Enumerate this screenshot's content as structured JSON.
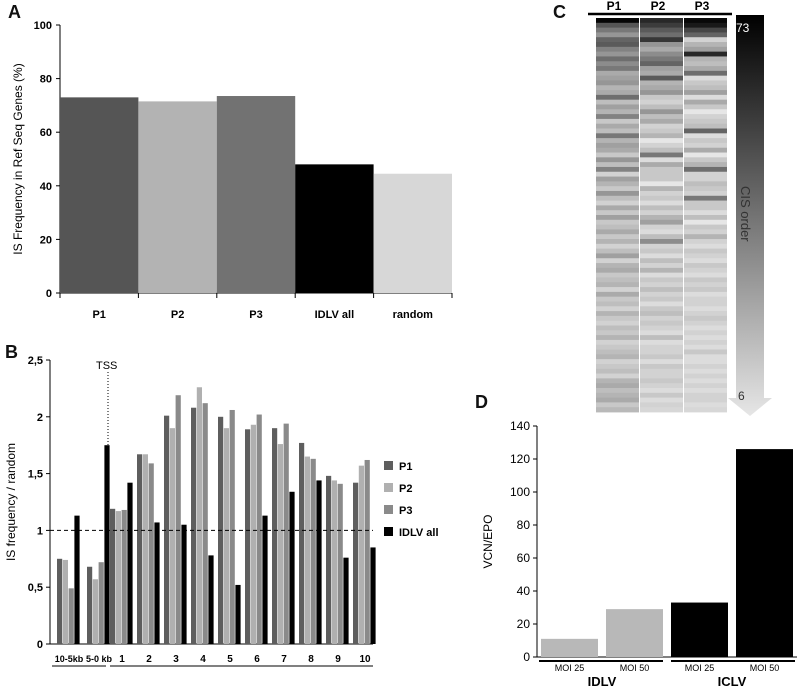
{
  "panels": {
    "A": "A",
    "B": "B",
    "C": "C",
    "D": "D"
  },
  "chart_data": [
    {
      "panel": "A",
      "type": "bar",
      "ylabel": "IS Frequency in Ref Seq Genes (%)",
      "xlabel": "",
      "ylim": [
        0,
        100
      ],
      "yticks": [
        0,
        20,
        40,
        60,
        80,
        100
      ],
      "categories": [
        "P1",
        "P2",
        "P3",
        "IDLV all",
        "random"
      ],
      "values": [
        73,
        71.5,
        73.5,
        48,
        44.5
      ],
      "colors": [
        "#555555",
        "#b3b3b3",
        "#727272",
        "#000000",
        "#d7d7d7"
      ],
      "grid": false
    },
    {
      "panel": "B",
      "type": "bar",
      "ylabel": "IS frequency / random",
      "ylim": [
        0,
        2.5
      ],
      "yticks": [
        "0",
        "0,5",
        "1",
        "1,5",
        "2",
        "2,5"
      ],
      "categories": [
        "10-5kb",
        "5-0 kb",
        "1",
        "2",
        "3",
        "4",
        "5",
        "6",
        "7",
        "8",
        "9",
        "10"
      ],
      "annotation": "TSS",
      "reference_line": 1,
      "series": [
        {
          "name": "P1",
          "color": "#5e5e5e",
          "values": [
            0.75,
            0.68,
            1.19,
            1.67,
            2.01,
            2.08,
            2.0,
            1.89,
            1.9,
            1.77,
            1.48,
            1.42
          ]
        },
        {
          "name": "P2",
          "color": "#b0b0b0",
          "values": [
            0.74,
            0.57,
            1.17,
            1.67,
            1.9,
            2.26,
            1.9,
            1.93,
            1.76,
            1.65,
            1.44,
            1.57
          ]
        },
        {
          "name": "P3",
          "color": "#8a8a8a",
          "values": [
            0.49,
            0.72,
            1.18,
            1.59,
            2.19,
            2.12,
            2.06,
            2.02,
            1.94,
            1.63,
            1.41,
            1.62
          ]
        },
        {
          "name": "IDLV all",
          "color": "#000000",
          "values": [
            1.13,
            1.75,
            1.42,
            1.07,
            1.05,
            0.78,
            0.52,
            1.13,
            1.34,
            1.44,
            0.76,
            0.85
          ]
        }
      ],
      "legend": "right",
      "grid": false
    },
    {
      "panel": "C",
      "type": "heatmap",
      "columns": [
        "P1",
        "P2",
        "P3"
      ],
      "colorbar_top": "73",
      "colorbar_bottom": "6",
      "colorbar_label": "CIS order",
      "rows_gray": [
        [
          5,
          40,
          8
        ],
        [
          85,
          60,
          25
        ],
        [
          120,
          90,
          70
        ],
        [
          150,
          110,
          100
        ],
        [
          100,
          55,
          210
        ],
        [
          90,
          150,
          180
        ],
        [
          130,
          170,
          160
        ],
        [
          150,
          140,
          40
        ],
        [
          110,
          120,
          180
        ],
        [
          140,
          100,
          190
        ],
        [
          120,
          160,
          170
        ],
        [
          170,
          170,
          110
        ],
        [
          160,
          90,
          220
        ],
        [
          150,
          180,
          200
        ],
        [
          180,
          170,
          190
        ],
        [
          170,
          150,
          160
        ],
        [
          110,
          200,
          220
        ],
        [
          190,
          210,
          170
        ],
        [
          160,
          190,
          200
        ],
        [
          180,
          150,
          230
        ],
        [
          130,
          190,
          210
        ],
        [
          200,
          170,
          200
        ],
        [
          170,
          210,
          190
        ],
        [
          190,
          200,
          100
        ],
        [
          120,
          180,
          220
        ],
        [
          180,
          230,
          200
        ],
        [
          160,
          210,
          210
        ],
        [
          170,
          190,
          170
        ],
        [
          200,
          120,
          230
        ],
        [
          150,
          220,
          200
        ],
        [
          190,
          170,
          180
        ],
        [
          130,
          200,
          110
        ],
        [
          210,
          200,
          210
        ],
        [
          160,
          200,
          210
        ],
        [
          180,
          230,
          190
        ],
        [
          200,
          180,
          200
        ],
        [
          150,
          210,
          210
        ],
        [
          190,
          200,
          120
        ],
        [
          210,
          220,
          200
        ],
        [
          170,
          190,
          200
        ],
        [
          200,
          210,
          220
        ],
        [
          160,
          180,
          190
        ],
        [
          200,
          160,
          230
        ],
        [
          190,
          210,
          200
        ],
        [
          170,
          220,
          210
        ],
        [
          200,
          190,
          180
        ],
        [
          180,
          140,
          210
        ],
        [
          210,
          210,
          220
        ],
        [
          190,
          200,
          200
        ],
        [
          160,
          220,
          210
        ],
        [
          210,
          190,
          220
        ],
        [
          180,
          210,
          200
        ],
        [
          170,
          180,
          210
        ],
        [
          200,
          220,
          220
        ],
        [
          190,
          200,
          200
        ],
        [
          180,
          210,
          210
        ],
        [
          210,
          190,
          200
        ],
        [
          170,
          210,
          220
        ],
        [
          200,
          200,
          210
        ],
        [
          190,
          220,
          210
        ],
        [
          210,
          200,
          220
        ],
        [
          180,
          190,
          210
        ],
        [
          200,
          210,
          200
        ],
        [
          210,
          200,
          210
        ],
        [
          190,
          210,
          220
        ],
        [
          200,
          220,
          210
        ],
        [
          180,
          190,
          220
        ],
        [
          210,
          220,
          210
        ],
        [
          200,
          210,
          220
        ],
        [
          190,
          210,
          200
        ],
        [
          180,
          200,
          220
        ],
        [
          210,
          220,
          220
        ],
        [
          200,
          200,
          210
        ],
        [
          190,
          210,
          220
        ],
        [
          210,
          210,
          210
        ],
        [
          180,
          200,
          220
        ],
        [
          170,
          210,
          210
        ],
        [
          190,
          220,
          220
        ],
        [
          180,
          200,
          210
        ],
        [
          170,
          220,
          210
        ],
        [
          200,
          210,
          220
        ],
        [
          185,
          215,
          215
        ]
      ]
    },
    {
      "panel": "D",
      "type": "bar",
      "ylabel": "VCN/EPO",
      "ylim": [
        0,
        140
      ],
      "yticks": [
        0,
        20,
        40,
        60,
        80,
        100,
        120,
        140
      ],
      "categories": [
        "MOI 25",
        "MOI 50",
        "MOI 25",
        "MOI 50"
      ],
      "groups": [
        {
          "name": "IDLV",
          "categories": [
            "MOI 25",
            "MOI 50"
          ]
        },
        {
          "name": "ICLV",
          "categories": [
            "MOI 25",
            "MOI 50"
          ]
        }
      ],
      "values": [
        11,
        29,
        33,
        126
      ],
      "colors": [
        "#b8b8b8",
        "#b8b8b8",
        "#000000",
        "#000000"
      ],
      "grid": false
    }
  ]
}
